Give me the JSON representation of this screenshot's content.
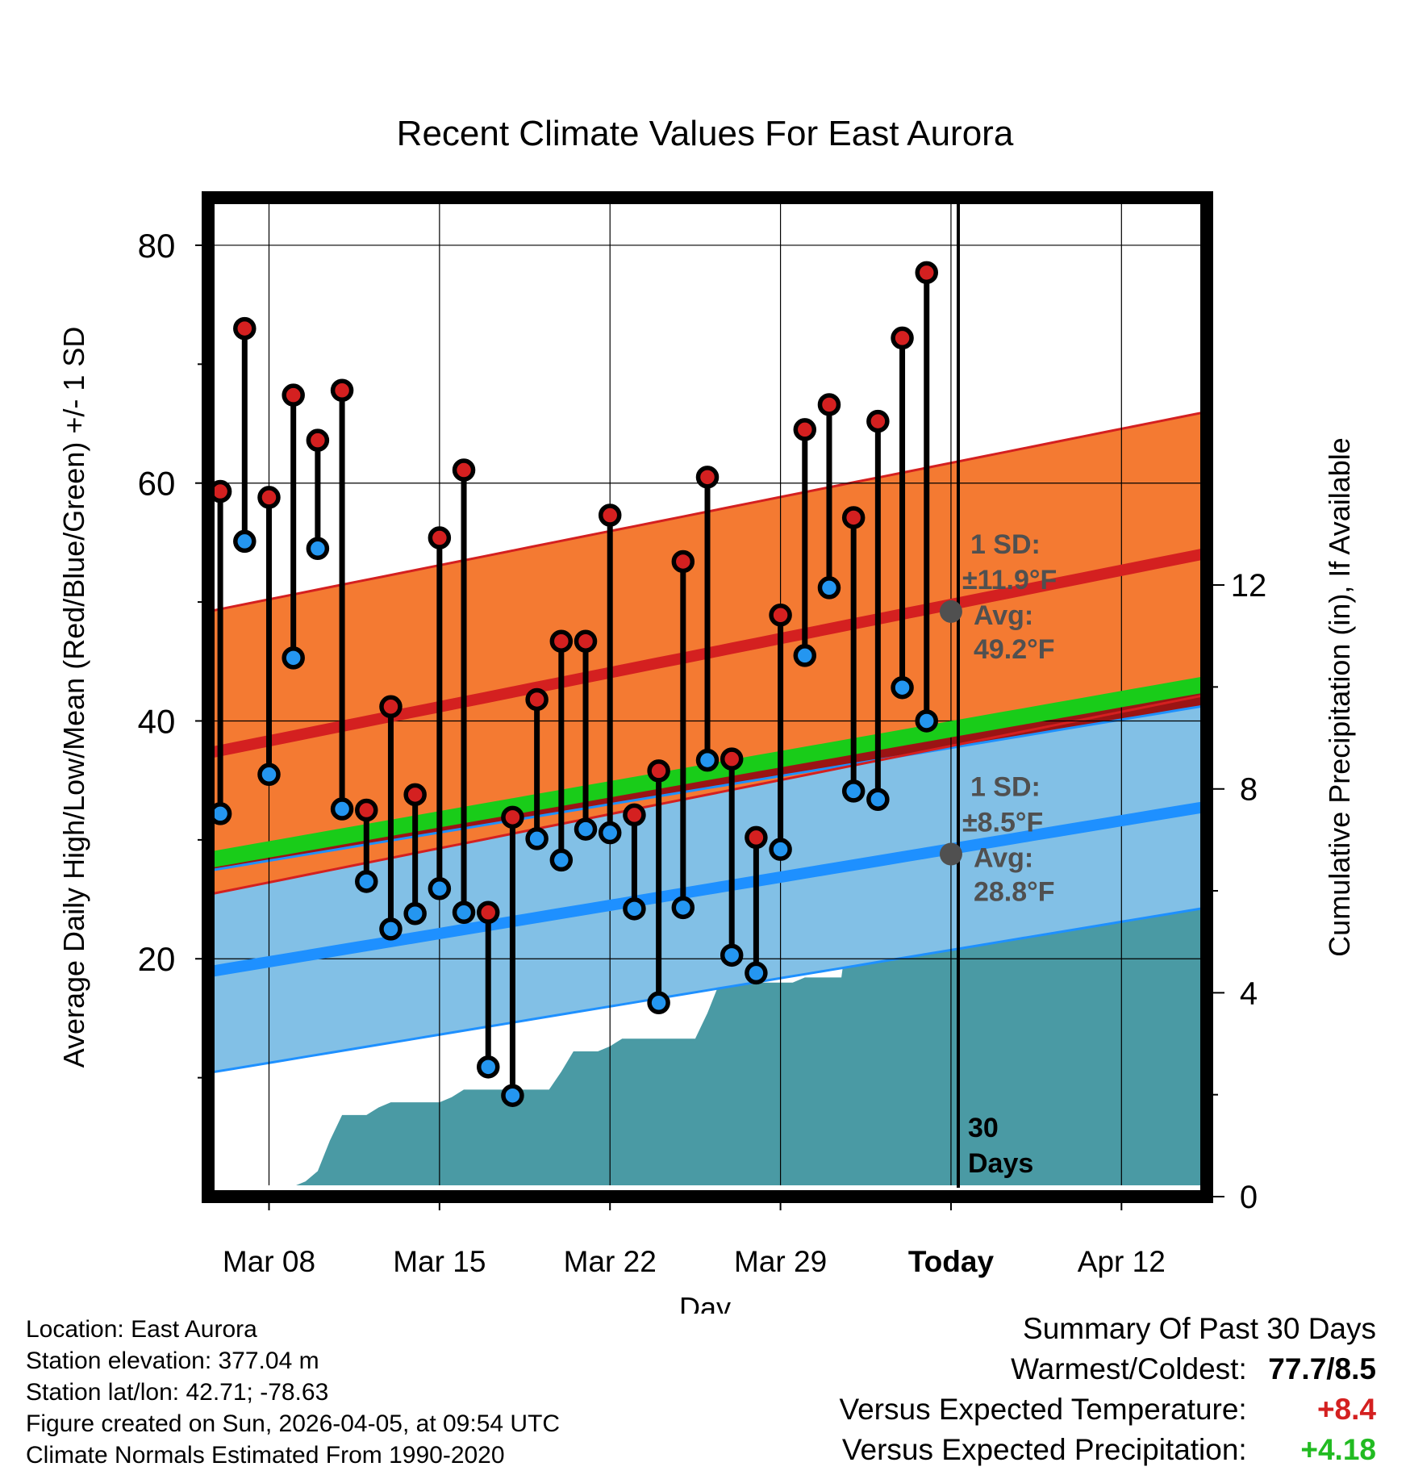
{
  "chart_data": {
    "type": "line",
    "title": "Recent Climate Values For East Aurora",
    "xlabel": "Day",
    "ylabel": "Average Daily High/Low/Mean (Red/Blue/Green) +/- 1 SD",
    "y2label": "Cumulative Precipitation (in), If Available",
    "xlim": [
      -2.5,
      38.5
    ],
    "ylim": [
      0,
      84
    ],
    "y2lim": [
      0,
      19.6
    ],
    "x_ticks": [
      {
        "x": 0,
        "label": "Mar 08"
      },
      {
        "x": 7,
        "label": "Mar 15"
      },
      {
        "x": 14,
        "label": "Mar 22"
      },
      {
        "x": 21,
        "label": "Mar 29"
      },
      {
        "x": 28,
        "label": "Today"
      },
      {
        "x": 35,
        "label": "Apr 12"
      }
    ],
    "y_ticks": [
      20,
      40,
      60,
      80
    ],
    "y2_ticks": [
      0,
      4,
      8,
      12
    ],
    "today_x": 28,
    "today_label": [
      "30",
      "Days"
    ],
    "days": [
      -2,
      -1,
      0,
      1,
      2,
      3,
      4,
      5,
      6,
      7,
      8,
      9,
      10,
      11,
      12,
      13,
      14,
      15,
      16,
      17,
      18,
      19,
      20,
      21,
      22,
      23,
      24,
      25,
      26,
      27
    ],
    "highs": [
      59.3,
      73.0,
      58.8,
      67.4,
      63.6,
      67.8,
      32.5,
      41.2,
      33.8,
      55.4,
      61.1,
      23.9,
      31.9,
      41.8,
      46.7,
      46.7,
      57.3,
      32.1,
      35.8,
      53.4,
      60.5,
      36.8,
      30.2,
      48.9,
      64.5,
      66.6,
      57.1,
      65.2,
      72.2,
      77.7
    ],
    "lows": [
      32.2,
      55.1,
      35.5,
      45.3,
      54.5,
      32.6,
      26.5,
      22.5,
      23.8,
      25.9,
      23.9,
      10.9,
      8.5,
      30.1,
      28.3,
      30.9,
      30.6,
      24.2,
      16.3,
      24.3,
      36.7,
      20.3,
      18.8,
      29.2,
      45.5,
      51.2,
      34.1,
      33.4,
      42.8,
      40.0
    ],
    "normal_high": {
      "start": 37.3,
      "end": 54.1
    },
    "normal_high_sd": 11.9,
    "normal_low": {
      "start": 18.9,
      "end": 32.8
    },
    "normal_low_sd": 8.5,
    "normal_mean": {
      "start": 28.3,
      "end": 43.1
    },
    "precip_x": [
      -1.5,
      -1,
      0,
      1,
      1.5,
      2,
      2.5,
      3,
      3.5,
      4,
      4.5,
      5,
      5.5,
      6,
      6.5,
      7,
      7.5,
      8,
      8.5,
      9,
      9.5,
      10,
      10.5,
      11,
      11.5,
      12,
      12.5,
      13,
      13.5,
      14,
      14.5,
      15,
      15.5,
      16,
      16.5,
      17,
      17.5,
      18,
      18.5,
      19,
      19.5,
      20,
      20.5,
      21,
      21.5,
      22,
      22.5,
      23,
      23.5,
      24,
      24.5,
      25,
      25.5,
      26,
      26.5,
      27,
      27.5,
      28,
      38.5
    ],
    "precip_y": [
      0.0,
      0.15,
      0.2,
      0.2,
      0.3,
      0.5,
      1.1,
      1.6,
      1.6,
      1.6,
      1.75,
      1.85,
      1.85,
      1.85,
      1.85,
      1.85,
      1.95,
      2.1,
      2.1,
      2.1,
      2.1,
      2.1,
      2.1,
      2.1,
      2.1,
      2.45,
      2.85,
      2.85,
      2.85,
      2.95,
      3.1,
      3.1,
      3.1,
      3.1,
      3.1,
      3.1,
      3.1,
      3.6,
      4.2,
      4.2,
      4.2,
      4.2,
      4.2,
      4.2,
      4.2,
      4.3,
      4.3,
      4.3,
      4.3,
      6.1,
      6.3,
      6.3,
      6.3,
      6.35,
      6.4,
      6.7,
      6.85,
      6.9,
      6.9
    ],
    "annotations": {
      "high": {
        "x": 28,
        "y": 49.2,
        "sd_label": "1 SD:",
        "sd": "±11.9°F",
        "avg_label": "Avg:",
        "avg": "49.2°F"
      },
      "low": {
        "x": 28,
        "y": 28.8,
        "sd_label": "1 SD:",
        "sd": "±8.5°F",
        "avg_label": "Avg:",
        "avg": "28.8°F"
      }
    },
    "colors": {
      "high_band": "#f47a32",
      "high_line": "#d42020",
      "low_band": "#82c0e6",
      "low_line": "#1e90ff",
      "mean_band": "#9b1414",
      "mean_line": "#19cc19",
      "precip": "#4a9aa4",
      "marker_high": "#d42020",
      "marker_low": "#2496f0"
    }
  },
  "info": {
    "location": "Location: East Aurora",
    "elevation": "Station elevation: 377.04 m",
    "latlon": "Station lat/lon: 42.71; -78.63",
    "created": "Figure created on Sun, 2026-04-05, at 09:54 UTC",
    "normals": "Climate Normals Estimated From 1990-2020"
  },
  "summary": {
    "title": "Summary Of Past 30 Days",
    "warmest_label": "Warmest/Coldest:",
    "warmest_value": "77.7/8.5",
    "temp_label": "Versus Expected Temperature:",
    "temp_value": "+8.4",
    "precip_label": "Versus Expected Precipitation:",
    "precip_value": "+4.18"
  }
}
